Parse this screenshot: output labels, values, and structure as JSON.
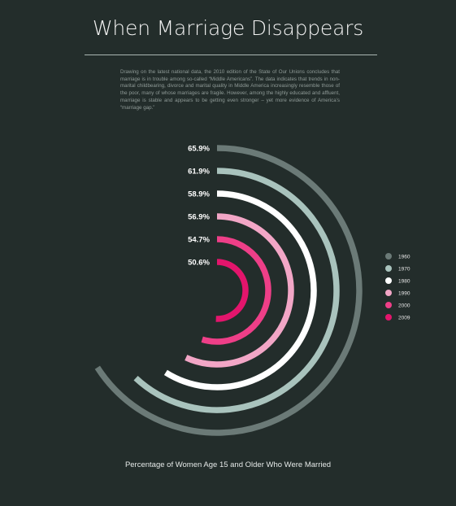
{
  "title": "When Marriage Disappears",
  "intro": "Drawing on the latest national data, the 2010 edition of the State of Our Unions concludes that marriage is in trouble among so-called “Middle Americans”. The data indicates that trends in non-marital childbearing, divorce and marital quality in Middle America increasingly resemble those of the poor, many of whose marriages are fragile. However, among the highly educated and affluent, marriage is stable and appears to be getting even stronger – yet more evidence of America’s “marriage gap.”",
  "caption": "Percentage of Women Age 15 and Older Who Were Married",
  "chart_data": {
    "type": "radial-bar",
    "title": "When Marriage Disappears",
    "xlabel": "Percentage of Women Age 15 and Older Who Were Married",
    "legend_position": "right",
    "series": [
      {
        "name": "1960",
        "value": 65.9,
        "label": "65.9%",
        "color": "#6b7a77"
      },
      {
        "name": "1970",
        "value": 61.9,
        "label": "61.9%",
        "color": "#a9c3bd"
      },
      {
        "name": "1980",
        "value": 58.9,
        "label": "58.9%",
        "color": "#ffffff"
      },
      {
        "name": "1990",
        "value": 56.9,
        "label": "56.9%",
        "color": "#f2a6c6"
      },
      {
        "name": "2000",
        "value": 54.7,
        "label": "54.7%",
        "color": "#ee3f88"
      },
      {
        "name": "2009",
        "value": 50.6,
        "label": "50.6%",
        "color": "#e3156c"
      }
    ]
  }
}
